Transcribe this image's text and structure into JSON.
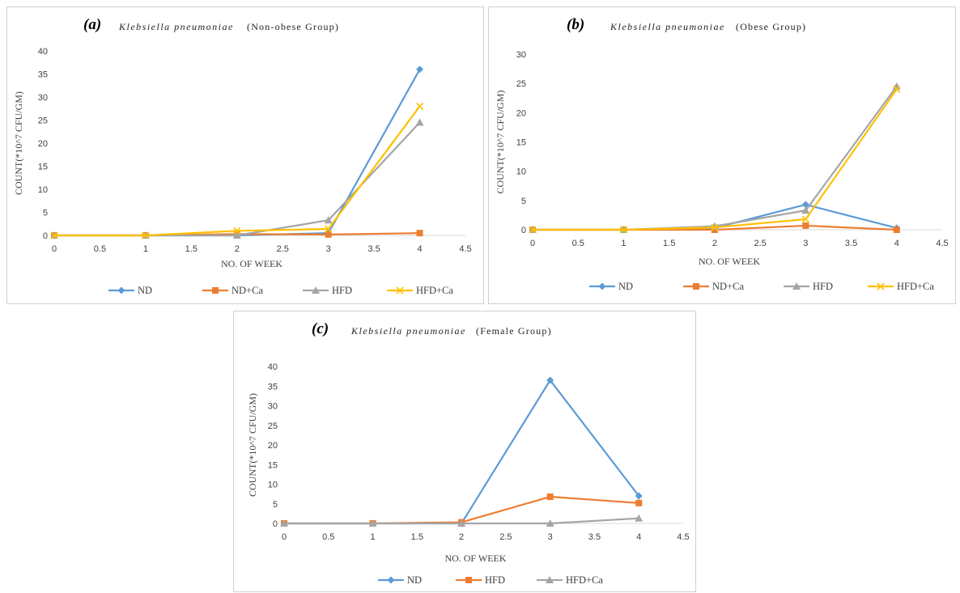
{
  "chart_data": [
    {
      "type": "line",
      "panel_label": "(a)",
      "title_organism": "Klebsiella pneumoniae",
      "title_group": "(Non-obese Group)",
      "xlabel": "NO. OF WEEK",
      "ylabel": "COUNT(*10^7 CFU/GM)",
      "xlim": [
        0,
        4.5
      ],
      "ylim": [
        0,
        40
      ],
      "xticks": [
        0,
        0.5,
        1,
        1.5,
        2,
        2.5,
        3,
        3.5,
        4,
        4.5
      ],
      "yticks": [
        0,
        5,
        10,
        15,
        20,
        25,
        30,
        35,
        40
      ],
      "grid": false,
      "legend_position": "bottom",
      "x": [
        0,
        1,
        2,
        3,
        4
      ],
      "series": [
        {
          "name": "ND",
          "color": "#5B9BD5",
          "marker": "diamond",
          "values": [
            0,
            0,
            0,
            0.5,
            36
          ]
        },
        {
          "name": "ND+Ca",
          "color": "#ED7D31",
          "marker": "square",
          "values": [
            0,
            0,
            0.3,
            0.2,
            0.5
          ]
        },
        {
          "name": "HFD",
          "color": "#A5A5A5",
          "marker": "triangle",
          "values": [
            0,
            0,
            0,
            3.3,
            24.5
          ]
        },
        {
          "name": "HFD+Ca",
          "color": "#FFC000",
          "marker": "x",
          "values": [
            0,
            0,
            1,
            1.4,
            28
          ]
        }
      ]
    },
    {
      "type": "line",
      "panel_label": "(b)",
      "title_organism": "Klebsiella pneumoniae",
      "title_group": "(Obese Group)",
      "xlabel": "NO. OF WEEK",
      "ylabel": "COUNT(*10^7 CFU/GM)",
      "xlim": [
        0,
        4.5
      ],
      "ylim": [
        0,
        30
      ],
      "xticks": [
        0,
        0.5,
        1,
        1.5,
        2,
        2.5,
        3,
        3.5,
        4,
        4.5
      ],
      "yticks": [
        0,
        5,
        10,
        15,
        20,
        25,
        30
      ],
      "grid": false,
      "legend_position": "bottom",
      "x": [
        0,
        1,
        2,
        3,
        4
      ],
      "series": [
        {
          "name": "ND",
          "color": "#5B9BD5",
          "marker": "diamond",
          "values": [
            0,
            0,
            0.3,
            4.3,
            0.3
          ]
        },
        {
          "name": "ND+Ca",
          "color": "#ED7D31",
          "marker": "square",
          "values": [
            0,
            0,
            0,
            0.7,
            0
          ]
        },
        {
          "name": "HFD",
          "color": "#A5A5A5",
          "marker": "triangle",
          "values": [
            0,
            0,
            0.6,
            3.3,
            24.5
          ]
        },
        {
          "name": "HFD+Ca",
          "color": "#FFC000",
          "marker": "x",
          "values": [
            0,
            0,
            0.4,
            1.8,
            24
          ]
        }
      ]
    },
    {
      "type": "line",
      "panel_label": "(c)",
      "title_organism": "Klebsiella pneumoniae",
      "title_group": "(Female Group)",
      "xlabel": "NO. OF WEEK",
      "ylabel": "COUNT(*10^7 CFU/GM)",
      "xlim": [
        0,
        4.5
      ],
      "ylim": [
        0,
        40
      ],
      "xticks": [
        0,
        0.5,
        1,
        1.5,
        2,
        2.5,
        3,
        3.5,
        4,
        4.5
      ],
      "yticks": [
        0,
        5,
        10,
        15,
        20,
        25,
        30,
        35,
        40
      ],
      "grid": false,
      "legend_position": "bottom",
      "x": [
        0,
        1,
        2,
        3,
        4
      ],
      "series": [
        {
          "name": "ND",
          "color": "#5B9BD5",
          "marker": "diamond",
          "values": [
            0,
            0,
            0,
            36.5,
            7
          ]
        },
        {
          "name": "HFD",
          "color": "#ED7D31",
          "marker": "square",
          "values": [
            0,
            0,
            0.3,
            6.8,
            5.2
          ]
        },
        {
          "name": "HFD+Ca",
          "color": "#A5A5A5",
          "marker": "triangle",
          "values": [
            0,
            0,
            0,
            0,
            1.3
          ]
        }
      ]
    }
  ]
}
